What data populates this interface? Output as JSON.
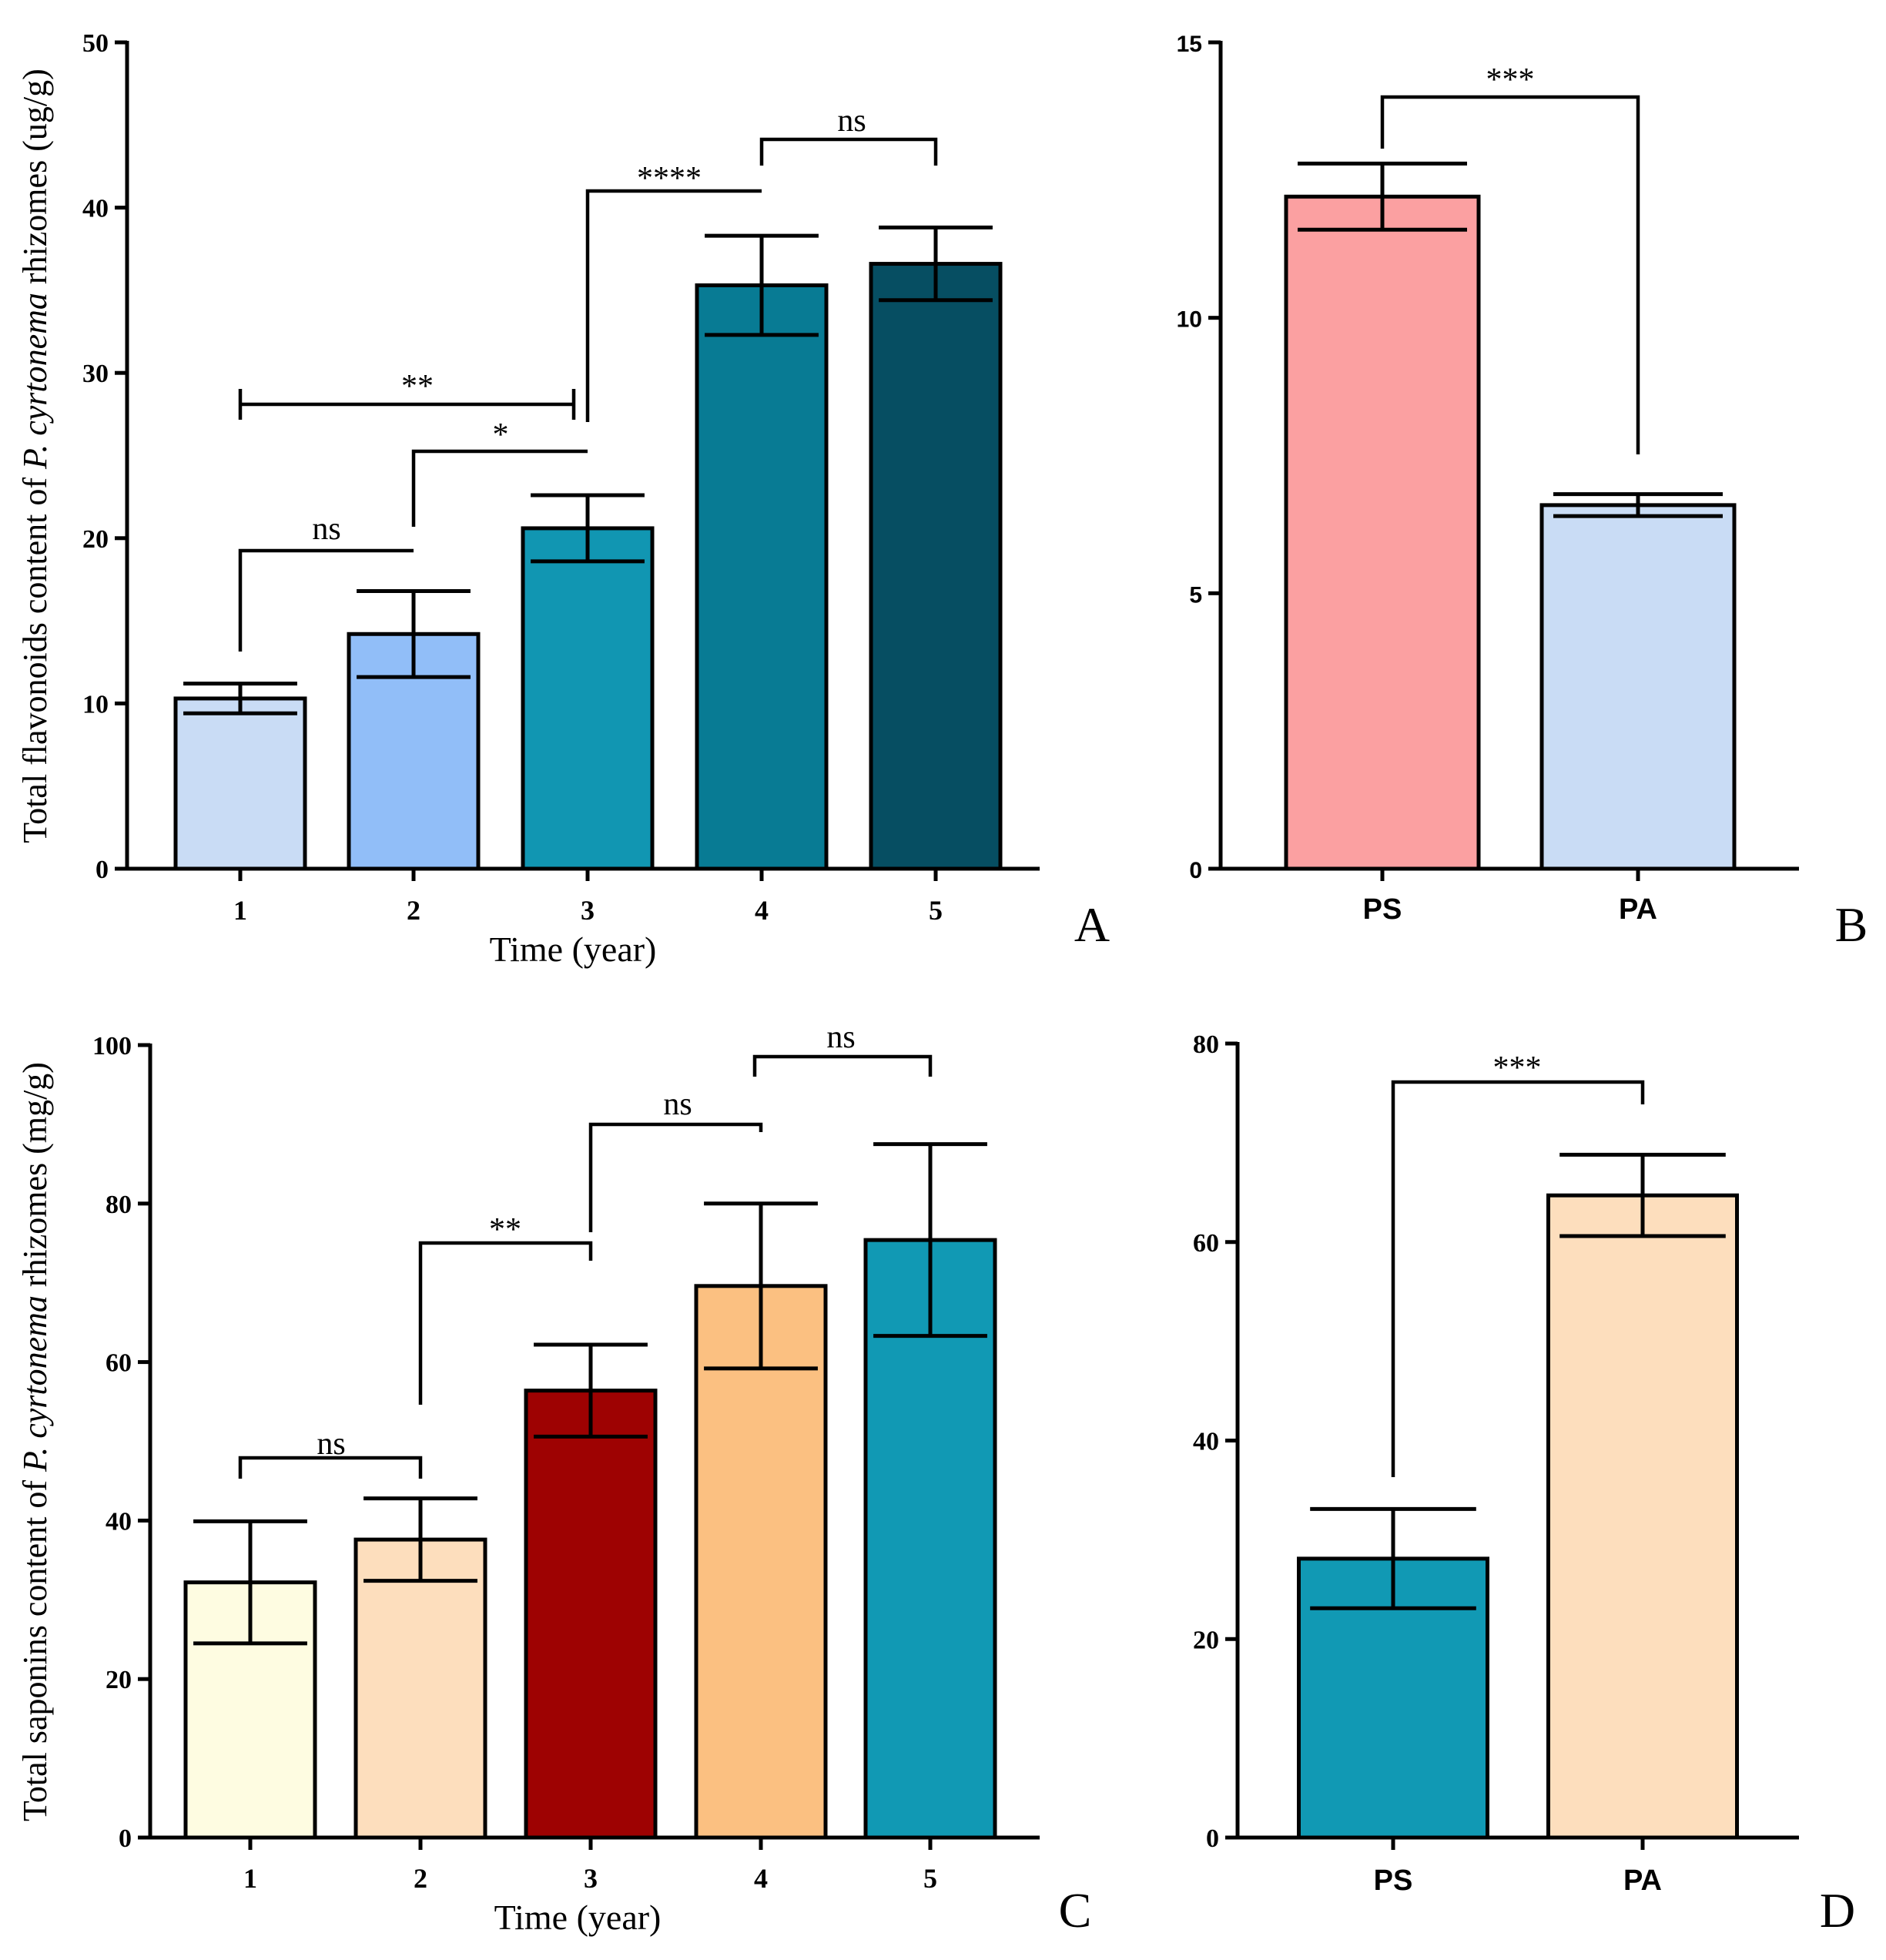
{
  "chart_data": [
    {
      "panel": "A",
      "type": "bar",
      "xlabel": "Time (year)",
      "ylabel_parts": [
        "Total flavonoids content of ",
        "P. cyrtonema",
        " rhizomes (ug/g)"
      ],
      "ylim": [
        0,
        50
      ],
      "yticks": [
        0,
        10,
        20,
        30,
        40,
        50
      ],
      "categories": [
        "1",
        "2",
        "3",
        "4",
        "5"
      ],
      "values": [
        10.3,
        14.2,
        20.6,
        35.3,
        36.6
      ],
      "errors": [
        0.9,
        2.6,
        2.0,
        3.0,
        2.2
      ],
      "colors": [
        "#c9dcf5",
        "#91bef8",
        "#1196b2",
        "#087b94",
        "#064e62"
      ],
      "significance": [
        {
          "from": 0,
          "to": 1,
          "label": "ns"
        },
        {
          "from": 1,
          "to": 2,
          "label": "*"
        },
        {
          "from": 0,
          "to": 2,
          "label": "**"
        },
        {
          "from": 2,
          "to": 3,
          "label": "****"
        },
        {
          "from": 3,
          "to": 4,
          "label": "ns"
        }
      ]
    },
    {
      "panel": "B",
      "type": "bar",
      "ylim": [
        0,
        15
      ],
      "yticks": [
        0,
        5,
        10,
        15
      ],
      "categories": [
        "PS",
        "PA"
      ],
      "values": [
        12.2,
        6.6
      ],
      "errors": [
        0.6,
        0.2
      ],
      "colors": [
        "#fba0a1",
        "#c9dcf5"
      ],
      "significance": [
        {
          "from": 0,
          "to": 1,
          "label": "***"
        }
      ]
    },
    {
      "panel": "C",
      "type": "bar",
      "xlabel": "Time (year)",
      "ylabel_parts": [
        "Total saponins content of ",
        "P. cyrtonema",
        " rhizomes (mg/g)"
      ],
      "ylim": [
        0,
        100
      ],
      "yticks": [
        0,
        20,
        40,
        60,
        80,
        100
      ],
      "categories": [
        "1",
        "2",
        "3",
        "4",
        "5"
      ],
      "values": [
        32.2,
        37.6,
        56.4,
        69.6,
        75.4
      ],
      "errors": [
        7.7,
        5.2,
        5.8,
        10.4,
        12.1
      ],
      "colors": [
        "#fefce1",
        "#fddebd",
        "#9e0202",
        "#fbc081",
        "#1199b4"
      ],
      "significance": [
        {
          "from": 0,
          "to": 1,
          "label": "ns"
        },
        {
          "from": 1,
          "to": 2,
          "label": "**"
        },
        {
          "from": 2,
          "to": 3,
          "label": "ns"
        },
        {
          "from": 3,
          "to": 4,
          "label": "ns"
        }
      ]
    },
    {
      "panel": "D",
      "type": "bar",
      "ylim": [
        0,
        80
      ],
      "yticks": [
        0,
        20,
        40,
        60,
        80
      ],
      "categories": [
        "PS",
        "PA"
      ],
      "values": [
        28.1,
        64.7
      ],
      "errors": [
        5.0,
        4.1
      ],
      "colors": [
        "#1199b4",
        "#fddebd"
      ],
      "significance": [
        {
          "from": 0,
          "to": 1,
          "label": "***"
        }
      ]
    }
  ]
}
